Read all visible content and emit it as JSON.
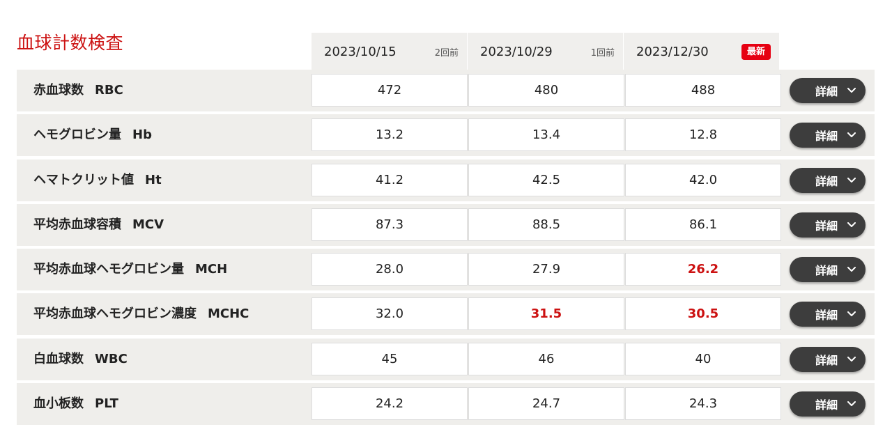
{
  "section": {
    "title": "血球計数検査"
  },
  "columns": [
    {
      "date": "2023/10/15",
      "note": "2回前",
      "badge": ""
    },
    {
      "date": "2023/10/29",
      "note": "1回前",
      "badge": ""
    },
    {
      "date": "2023/12/30",
      "note": "",
      "badge": "最新"
    }
  ],
  "detail_label": "詳細",
  "colors": {
    "title": "#cc1111",
    "abnormal": "#cc1111",
    "badge": "#e60012",
    "button": "#3d3d3d",
    "row_background": "#efeeeb"
  },
  "rows": [
    {
      "label": "赤血球数",
      "abbr": "RBC",
      "values": [
        "472",
        "480",
        "488"
      ],
      "abnormal": [
        false,
        false,
        false
      ]
    },
    {
      "label": "ヘモグロビン量",
      "abbr": "Hb",
      "values": [
        "13.2",
        "13.4",
        "12.8"
      ],
      "abnormal": [
        false,
        false,
        false
      ]
    },
    {
      "label": "ヘマトクリット値",
      "abbr": "Ht",
      "values": [
        "41.2",
        "42.5",
        "42.0"
      ],
      "abnormal": [
        false,
        false,
        false
      ]
    },
    {
      "label": "平均赤血球容積",
      "abbr": "MCV",
      "values": [
        "87.3",
        "88.5",
        "86.1"
      ],
      "abnormal": [
        false,
        false,
        false
      ]
    },
    {
      "label": "平均赤血球ヘモグロビン量",
      "abbr": "MCH",
      "values": [
        "28.0",
        "27.9",
        "26.2"
      ],
      "abnormal": [
        false,
        false,
        true
      ]
    },
    {
      "label": "平均赤血球ヘモグロビン濃度",
      "abbr": "MCHC",
      "values": [
        "32.0",
        "31.5",
        "30.5"
      ],
      "abnormal": [
        false,
        true,
        true
      ]
    },
    {
      "label": "白血球数",
      "abbr": "WBC",
      "values": [
        "45",
        "46",
        "40"
      ],
      "abnormal": [
        false,
        false,
        false
      ]
    },
    {
      "label": "血小板数",
      "abbr": "PLT",
      "values": [
        "24.2",
        "24.7",
        "24.3"
      ],
      "abnormal": [
        false,
        false,
        false
      ]
    }
  ]
}
